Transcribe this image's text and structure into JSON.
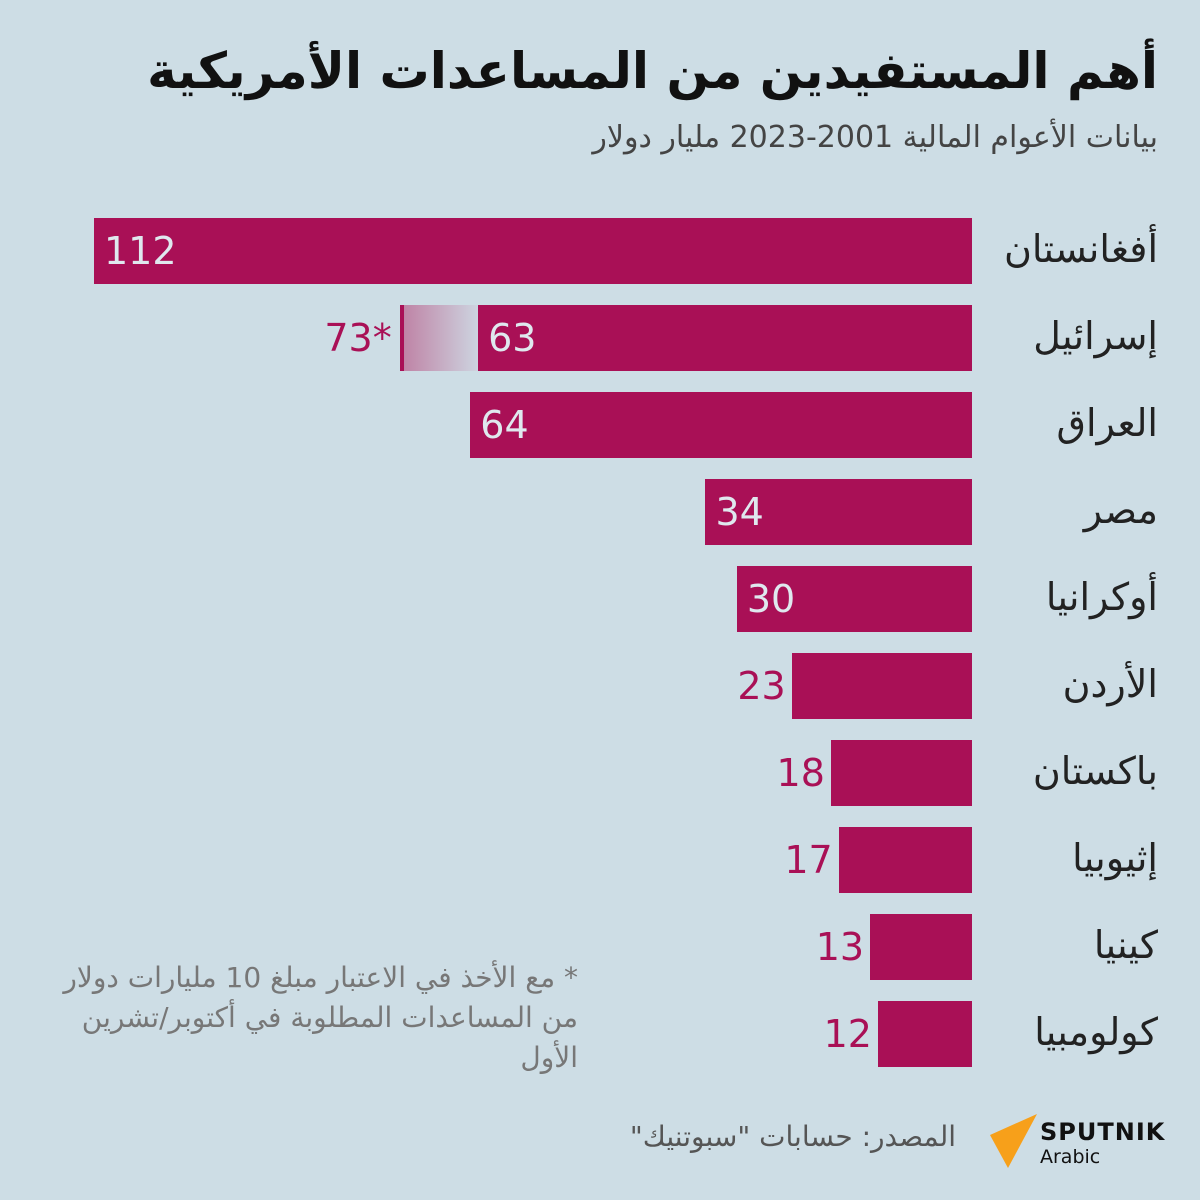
{
  "title": "أهم المستفيدين من المساعدات الأمريكية",
  "subtitle": "بيانات الأعوام المالية 2001-2023 مليار دولار",
  "chart_data": {
    "type": "bar",
    "orientation": "horizontal",
    "title": "أهم المستفيدين من المساعدات الأمريكية",
    "subtitle": "بيانات الأعوام المالية 2001-2023 مليار دولار",
    "categories": [
      "أفغانستان",
      "إسرائيل",
      "العراق",
      "مصر",
      "أوكرانيا",
      "الأردن",
      "باكستان",
      "إثيوبيا",
      "كينيا",
      "كولومبيا"
    ],
    "values": [
      112,
      63,
      64,
      34,
      30,
      23,
      18,
      17,
      13,
      12
    ],
    "extended": {
      "category": "إسرائيل",
      "value": 73,
      "label": "73*"
    },
    "xlim": [
      0,
      112
    ],
    "grid": false,
    "bar_color": "#a91056",
    "label_color_inside": "#dfe8ee"
  },
  "footnote": "* مع الأخذ في الاعتبار مبلغ 10 مليارات دولار من المساعدات المطلوبة في أكتوبر/تشرين الأول",
  "source": "المصدر: حسابات \"سبوتنيك\"",
  "logo": {
    "brand": "SPUTNIK",
    "sub": "Arabic",
    "color": "#f7a01a"
  },
  "background": "#cddde5"
}
